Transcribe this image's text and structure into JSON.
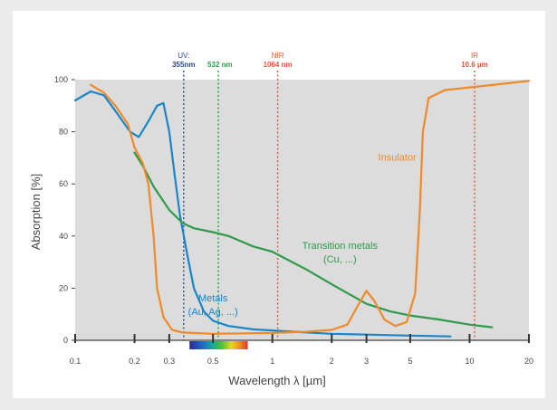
{
  "chart_data": {
    "type": "line",
    "xlabel": "Wavelength λ [µm]",
    "ylabel": "Absorption [%]",
    "xscale": "log",
    "xlim": [
      0.1,
      20
    ],
    "ylim": [
      0,
      100
    ],
    "grid": false,
    "y_ticks": [
      0,
      20,
      40,
      60,
      80,
      100
    ],
    "x_ticks": [
      {
        "value": 0.1,
        "label": "0.1"
      },
      {
        "value": 0.2,
        "label": "0.2"
      },
      {
        "value": 0.3,
        "label": "0.3"
      },
      {
        "value": 0.5,
        "label": "0.5"
      },
      {
        "value": 1,
        "label": "1"
      },
      {
        "value": 2,
        "label": "2"
      },
      {
        "value": 3,
        "label": "3"
      },
      {
        "value": 5,
        "label": "5"
      },
      {
        "value": 10,
        "label": "10"
      },
      {
        "value": 20,
        "label": "20"
      }
    ],
    "markers": [
      {
        "x": 0.355,
        "line1": "UV:",
        "line2": "355nm",
        "color": "#2a4a8f",
        "label_align": "middle"
      },
      {
        "x": 0.532,
        "line1": "",
        "line2": "532 nm",
        "color": "#2f9a4c",
        "label_align": "start"
      },
      {
        "x": 1.064,
        "line1": "NIR",
        "line2": "1064 nm",
        "color": "#d85a3a",
        "label_align": "middle"
      },
      {
        "x": 10.6,
        "line1": "IR",
        "line2": "10.6 µm",
        "color": "#d85a3a",
        "label_align": "middle"
      }
    ],
    "series": [
      {
        "name": "Metals (Au, Ag, ...)",
        "color": "#1a86c8",
        "label_lines": [
          "Metals",
          "(Au, Ag, ...)"
        ],
        "label_pos": [
          0.5,
          15
        ],
        "points": [
          [
            0.1,
            92
          ],
          [
            0.12,
            95.5
          ],
          [
            0.14,
            94
          ],
          [
            0.16,
            88
          ],
          [
            0.19,
            80
          ],
          [
            0.21,
            78
          ],
          [
            0.235,
            84
          ],
          [
            0.26,
            90
          ],
          [
            0.28,
            91
          ],
          [
            0.3,
            80
          ],
          [
            0.32,
            63
          ],
          [
            0.34,
            48
          ],
          [
            0.37,
            33
          ],
          [
            0.4,
            20
          ],
          [
            0.45,
            11
          ],
          [
            0.5,
            7.5
          ],
          [
            0.6,
            5.5
          ],
          [
            0.8,
            4.2
          ],
          [
            1.0,
            3.8
          ],
          [
            1.5,
            3
          ],
          [
            2,
            2.5
          ],
          [
            3,
            2.2
          ],
          [
            5,
            1.8
          ],
          [
            8,
            1.5
          ]
        ]
      },
      {
        "name": "Transition metals (Cu, ...)",
        "color": "#2f9a4c",
        "label_lines": [
          "Transition metals",
          "(Cu, ...)"
        ],
        "label_pos": [
          2.2,
          35
        ],
        "points": [
          [
            0.2,
            72
          ],
          [
            0.22,
            67
          ],
          [
            0.25,
            59
          ],
          [
            0.3,
            50
          ],
          [
            0.35,
            45
          ],
          [
            0.4,
            43
          ],
          [
            0.5,
            41.5
          ],
          [
            0.6,
            40
          ],
          [
            0.8,
            36
          ],
          [
            1.0,
            34
          ],
          [
            1.5,
            27
          ],
          [
            2,
            21.5
          ],
          [
            3,
            14
          ],
          [
            4,
            11
          ],
          [
            5,
            9.5
          ],
          [
            7,
            8
          ],
          [
            10,
            6
          ],
          [
            13,
            5
          ]
        ]
      },
      {
        "name": "Insulator",
        "color": "#ef8a2a",
        "label_lines": [
          "Insulator"
        ],
        "label_pos": [
          4.3,
          69
        ],
        "points": [
          [
            0.12,
            98
          ],
          [
            0.14,
            95
          ],
          [
            0.16,
            90
          ],
          [
            0.185,
            83
          ],
          [
            0.2,
            74
          ],
          [
            0.22,
            68
          ],
          [
            0.235,
            60
          ],
          [
            0.25,
            40
          ],
          [
            0.26,
            20
          ],
          [
            0.28,
            9
          ],
          [
            0.31,
            4
          ],
          [
            0.35,
            3
          ],
          [
            0.5,
            2.5
          ],
          [
            1.0,
            2.8
          ],
          [
            1.5,
            3.3
          ],
          [
            2,
            4
          ],
          [
            2.4,
            6
          ],
          [
            2.7,
            13
          ],
          [
            3.0,
            19
          ],
          [
            3.3,
            15
          ],
          [
            3.7,
            8
          ],
          [
            4.2,
            5.5
          ],
          [
            4.8,
            7
          ],
          [
            5.3,
            18
          ],
          [
            5.6,
            50
          ],
          [
            5.8,
            80
          ],
          [
            6.2,
            93
          ],
          [
            7.5,
            96
          ],
          [
            10,
            97
          ],
          [
            20,
            99.5
          ]
        ]
      }
    ]
  }
}
